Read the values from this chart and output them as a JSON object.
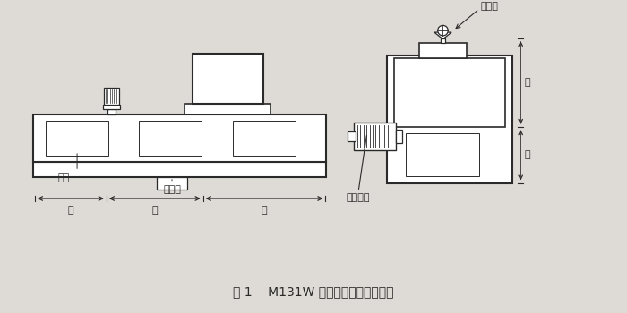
{
  "title": "图 1    M131W 万能外圆磨床热源分布",
  "title_fontsize": 10,
  "bg_color": "#e8e4df",
  "line_color": "#2a2a2a",
  "label_yuchi": "油池",
  "label_zongjixiang": "操纵箱",
  "label_left": "左",
  "label_mid": "中",
  "label_right": "右",
  "label_youyaxiang": "油压箱",
  "label_youbenzhuangzhi": "油泵装置",
  "label_shang": "上",
  "label_xia": "下"
}
